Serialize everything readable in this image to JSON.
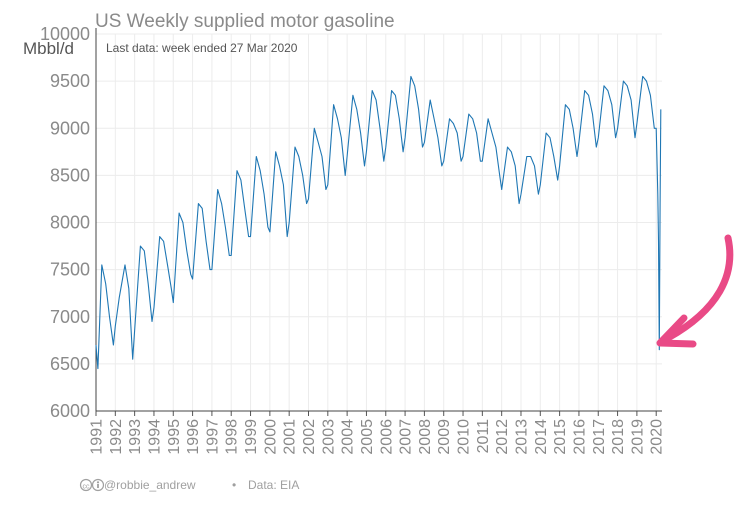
{
  "chart_data": {
    "type": "line",
    "title": "US Weekly supplied motor gasoline",
    "subtitle": "Last data: week ended 27 Mar 2020",
    "ylabel": "Mbbl/d",
    "xlabel": "",
    "xlim": [
      1991.0,
      2020.3
    ],
    "ylim": [
      6000,
      10000
    ],
    "yticks": [
      6000,
      6500,
      7000,
      7500,
      8000,
      8500,
      9000,
      9500,
      10000
    ],
    "xticks": [
      "1991",
      "1992",
      "1993",
      "1994",
      "1995",
      "1996",
      "1997",
      "1998",
      "1999",
      "2000",
      "2001",
      "2002",
      "2003",
      "2004",
      "2005",
      "2006",
      "2007",
      "2008",
      "2009",
      "2010",
      "2011",
      "2012",
      "2013",
      "2014",
      "2015",
      "2016",
      "2017",
      "2018",
      "2019",
      "2020"
    ],
    "grid": true,
    "series": [
      {
        "color": "#1f77b4",
        "x": [
          1991.0,
          1991.1,
          1991.3,
          1991.5,
          1991.7,
          1991.9,
          1992.0,
          1992.2,
          1992.5,
          1992.7,
          1992.9,
          1993.0,
          1993.3,
          1993.5,
          1993.7,
          1993.9,
          1994.0,
          1994.3,
          1994.5,
          1994.7,
          1994.9,
          1995.0,
          1995.3,
          1995.5,
          1995.7,
          1995.9,
          1996.0,
          1996.3,
          1996.5,
          1996.7,
          1996.9,
          1997.0,
          1997.3,
          1997.5,
          1997.7,
          1997.9,
          1998.0,
          1998.3,
          1998.5,
          1998.7,
          1998.9,
          1999.0,
          1999.3,
          1999.5,
          1999.7,
          1999.9,
          2000.0,
          2000.3,
          2000.5,
          2000.7,
          2000.9,
          2001.0,
          2001.3,
          2001.5,
          2001.7,
          2001.9,
          2002.0,
          2002.3,
          2002.5,
          2002.7,
          2002.9,
          2003.0,
          2003.3,
          2003.5,
          2003.7,
          2003.9,
          2004.0,
          2004.3,
          2004.5,
          2004.7,
          2004.9,
          2005.0,
          2005.3,
          2005.5,
          2005.7,
          2005.9,
          2006.0,
          2006.3,
          2006.5,
          2006.7,
          2006.9,
          2007.0,
          2007.3,
          2007.5,
          2007.7,
          2007.9,
          2008.0,
          2008.3,
          2008.5,
          2008.7,
          2008.9,
          2009.0,
          2009.3,
          2009.5,
          2009.7,
          2009.9,
          2010.0,
          2010.3,
          2010.5,
          2010.7,
          2010.9,
          2011.0,
          2011.3,
          2011.5,
          2011.7,
          2011.9,
          2012.0,
          2012.3,
          2012.5,
          2012.7,
          2012.9,
          2013.0,
          2013.3,
          2013.5,
          2013.7,
          2013.9,
          2014.0,
          2014.3,
          2014.5,
          2014.7,
          2014.9,
          2015.0,
          2015.3,
          2015.5,
          2015.7,
          2015.9,
          2016.0,
          2016.3,
          2016.5,
          2016.7,
          2016.9,
          2017.0,
          2017.3,
          2017.5,
          2017.7,
          2017.9,
          2018.0,
          2018.3,
          2018.5,
          2018.7,
          2018.9,
          2019.0,
          2019.3,
          2019.5,
          2019.7,
          2019.9,
          2020.0,
          2020.08,
          2020.12,
          2020.16,
          2020.2,
          2020.24
        ],
        "y": [
          6700,
          6450,
          7550,
          7350,
          7000,
          6700,
          6900,
          7200,
          7550,
          7300,
          6550,
          6850,
          7750,
          7700,
          7350,
          6950,
          7100,
          7850,
          7800,
          7550,
          7300,
          7150,
          8100,
          8000,
          7700,
          7450,
          7400,
          8200,
          8150,
          7800,
          7500,
          7500,
          8350,
          8200,
          7950,
          7650,
          7650,
          8550,
          8450,
          8150,
          7850,
          7850,
          8700,
          8550,
          8300,
          7950,
          7900,
          8750,
          8600,
          8400,
          7850,
          8000,
          8800,
          8700,
          8500,
          8200,
          8250,
          9000,
          8850,
          8700,
          8350,
          8400,
          9250,
          9100,
          8900,
          8500,
          8700,
          9350,
          9200,
          8950,
          8600,
          8750,
          9400,
          9300,
          9000,
          8650,
          8800,
          9400,
          9350,
          9100,
          8750,
          8900,
          9550,
          9450,
          9200,
          8800,
          8850,
          9300,
          9100,
          8900,
          8600,
          8650,
          9100,
          9050,
          8950,
          8650,
          8700,
          9150,
          9100,
          8950,
          8650,
          8650,
          9100,
          8950,
          8800,
          8500,
          8350,
          8800,
          8750,
          8600,
          8200,
          8300,
          8700,
          8700,
          8600,
          8300,
          8400,
          8950,
          8900,
          8700,
          8450,
          8600,
          9250,
          9200,
          9000,
          8700,
          8850,
          9400,
          9350,
          9150,
          8800,
          8900,
          9450,
          9400,
          9250,
          8900,
          9000,
          9500,
          9450,
          9300,
          8900,
          9050,
          9550,
          9500,
          9350,
          9000,
          9000,
          8300,
          7800,
          6650,
          8200,
          9200
        ]
      }
    ],
    "annotation_arrow_color": "#e94a86"
  },
  "footer": {
    "credit": "@robbie_andrew",
    "separator": "•",
    "source": "Data: EIA"
  }
}
